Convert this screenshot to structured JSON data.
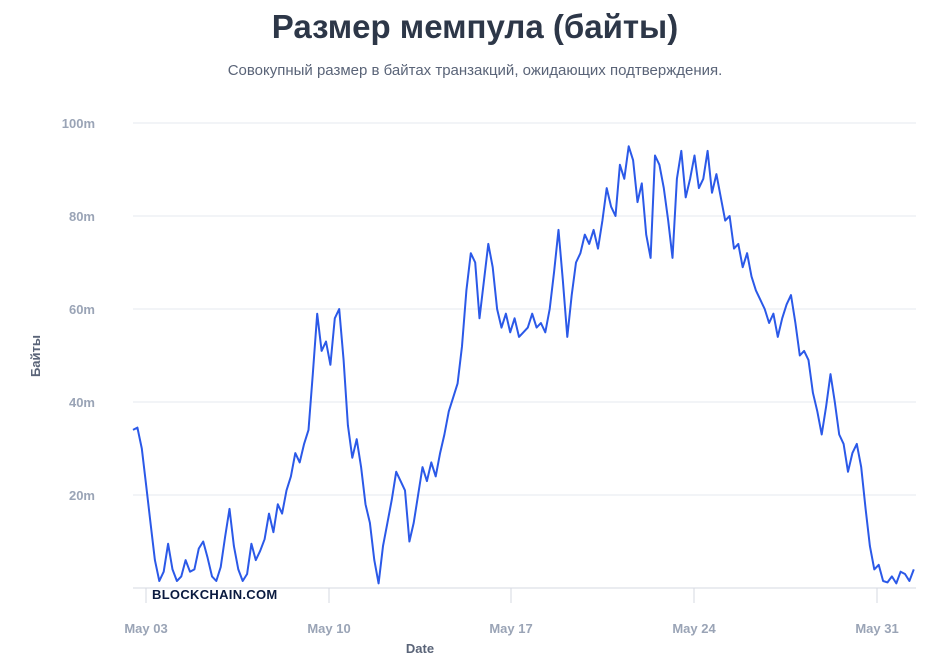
{
  "chart_data": {
    "type": "line",
    "title": "Размер мемпула (байты)",
    "subtitle": "Совокупный размер в байтах транзакций, ожидающих подтверждения.",
    "xlabel": "Date",
    "ylabel": "Байты",
    "x_tick_labels": [
      "May 03",
      "May 10",
      "May 17",
      "May 24",
      "May 31"
    ],
    "y_tick_labels": [
      "20m",
      "40m",
      "60m",
      "80m",
      "100m"
    ],
    "ylim": [
      0,
      100000000
    ],
    "xlim": [
      "2021-05-02T18:00",
      "2021-06-01T12:00"
    ],
    "grid": true,
    "line_color": "#2b59e8",
    "watermark": "BLOCKCHAIN.COM",
    "series": [
      {
        "x": [
          "2021-05-02T18:00",
          "2021-05-02T22:00",
          "2021-05-03T02:00",
          "2021-05-03T06:00",
          "2021-05-03T10:00",
          "2021-05-03T14:00",
          "2021-05-03T18:00",
          "2021-05-03T22:00",
          "2021-05-04T02:00",
          "2021-05-04T06:00",
          "2021-05-04T10:00",
          "2021-05-04T14:00",
          "2021-05-04T18:00",
          "2021-05-04T22:00",
          "2021-05-05T02:00",
          "2021-05-05T06:00",
          "2021-05-05T10:00",
          "2021-05-05T14:00",
          "2021-05-05T18:00",
          "2021-05-05T22:00",
          "2021-05-06T02:00",
          "2021-05-06T06:00",
          "2021-05-06T10:00",
          "2021-05-06T14:00",
          "2021-05-06T18:00",
          "2021-05-06T22:00",
          "2021-05-07T02:00",
          "2021-05-07T06:00",
          "2021-05-07T10:00",
          "2021-05-07T14:00",
          "2021-05-07T18:00",
          "2021-05-07T22:00",
          "2021-05-08T02:00",
          "2021-05-08T06:00",
          "2021-05-08T10:00",
          "2021-05-08T14:00",
          "2021-05-08T18:00",
          "2021-05-08T22:00",
          "2021-05-09T02:00",
          "2021-05-09T06:00",
          "2021-05-09T10:00",
          "2021-05-09T14:00",
          "2021-05-09T18:00",
          "2021-05-09T22:00",
          "2021-05-10T02:00",
          "2021-05-10T06:00",
          "2021-05-10T10:00",
          "2021-05-10T14:00",
          "2021-05-10T18:00",
          "2021-05-10T22:00",
          "2021-05-11T02:00",
          "2021-05-11T06:00",
          "2021-05-11T10:00",
          "2021-05-11T14:00",
          "2021-05-11T18:00",
          "2021-05-11T22:00",
          "2021-05-12T02:00",
          "2021-05-12T06:00",
          "2021-05-12T10:00",
          "2021-05-12T14:00",
          "2021-05-12T18:00",
          "2021-05-12T22:00",
          "2021-05-13T02:00",
          "2021-05-13T06:00",
          "2021-05-13T10:00",
          "2021-05-13T14:00",
          "2021-05-13T18:00",
          "2021-05-13T22:00",
          "2021-05-14T02:00",
          "2021-05-14T06:00",
          "2021-05-14T10:00",
          "2021-05-14T14:00",
          "2021-05-14T18:00",
          "2021-05-14T22:00",
          "2021-05-15T02:00",
          "2021-05-15T06:00",
          "2021-05-15T10:00",
          "2021-05-15T14:00",
          "2021-05-15T18:00",
          "2021-05-15T22:00",
          "2021-05-16T02:00",
          "2021-05-16T06:00",
          "2021-05-16T10:00",
          "2021-05-16T14:00",
          "2021-05-16T18:00",
          "2021-05-16T22:00",
          "2021-05-17T02:00",
          "2021-05-17T06:00",
          "2021-05-17T10:00",
          "2021-05-17T14:00",
          "2021-05-17T18:00",
          "2021-05-17T22:00",
          "2021-05-18T02:00",
          "2021-05-18T06:00",
          "2021-05-18T10:00",
          "2021-05-18T14:00",
          "2021-05-18T18:00",
          "2021-05-18T22:00",
          "2021-05-19T02:00",
          "2021-05-19T06:00",
          "2021-05-19T10:00",
          "2021-05-19T14:00",
          "2021-05-19T18:00",
          "2021-05-19T22:00",
          "2021-05-20T02:00",
          "2021-05-20T06:00",
          "2021-05-20T10:00",
          "2021-05-20T14:00",
          "2021-05-20T18:00",
          "2021-05-20T22:00",
          "2021-05-21T02:00",
          "2021-05-21T06:00",
          "2021-05-21T10:00",
          "2021-05-21T14:00",
          "2021-05-21T18:00",
          "2021-05-21T22:00",
          "2021-05-22T02:00",
          "2021-05-22T06:00",
          "2021-05-22T10:00",
          "2021-05-22T14:00",
          "2021-05-22T18:00",
          "2021-05-22T22:00",
          "2021-05-23T02:00",
          "2021-05-23T06:00",
          "2021-05-23T10:00",
          "2021-05-23T14:00",
          "2021-05-23T18:00",
          "2021-05-23T22:00",
          "2021-05-24T02:00",
          "2021-05-24T06:00",
          "2021-05-24T10:00",
          "2021-05-24T14:00",
          "2021-05-24T18:00",
          "2021-05-24T22:00",
          "2021-05-25T02:00",
          "2021-05-25T06:00",
          "2021-05-25T10:00",
          "2021-05-25T14:00",
          "2021-05-25T18:00",
          "2021-05-25T22:00",
          "2021-05-26T02:00",
          "2021-05-26T06:00",
          "2021-05-26T10:00",
          "2021-05-26T14:00",
          "2021-05-26T18:00",
          "2021-05-26T22:00",
          "2021-05-27T02:00",
          "2021-05-27T06:00",
          "2021-05-27T10:00",
          "2021-05-27T14:00",
          "2021-05-27T18:00",
          "2021-05-27T22:00",
          "2021-05-28T02:00",
          "2021-05-28T06:00",
          "2021-05-28T10:00",
          "2021-05-28T14:00",
          "2021-05-28T18:00",
          "2021-05-28T22:00",
          "2021-05-29T02:00",
          "2021-05-29T06:00",
          "2021-05-29T10:00",
          "2021-05-29T14:00",
          "2021-05-29T18:00",
          "2021-05-29T22:00",
          "2021-05-30T02:00",
          "2021-05-30T06:00",
          "2021-05-30T10:00",
          "2021-05-30T14:00",
          "2021-05-30T18:00",
          "2021-05-30T22:00",
          "2021-05-31T02:00",
          "2021-05-31T06:00",
          "2021-05-31T10:00",
          "2021-05-31T14:00",
          "2021-05-31T18:00",
          "2021-05-31T22:00",
          "2021-06-01T02:00",
          "2021-06-01T06:00",
          "2021-06-01T10:00"
        ],
        "y": [
          34000000,
          34500000,
          30000000,
          22000000,
          14000000,
          6000000,
          1500000,
          3500000,
          9500000,
          4000000,
          1500000,
          2500000,
          6000000,
          3500000,
          4000000,
          8500000,
          10000000,
          6500000,
          2500000,
          1500000,
          4500000,
          11000000,
          17000000,
          9000000,
          4000000,
          1500000,
          3000000,
          9500000,
          6000000,
          8000000,
          10500000,
          16000000,
          12000000,
          18000000,
          16000000,
          21000000,
          24000000,
          29000000,
          27000000,
          31000000,
          34000000,
          46000000,
          59000000,
          51000000,
          53000000,
          48000000,
          58000000,
          60000000,
          49000000,
          35000000,
          28000000,
          32000000,
          26000000,
          18000000,
          14000000,
          6000000,
          1000000,
          9000000,
          14000000,
          19000000,
          25000000,
          23000000,
          21000000,
          10000000,
          14000000,
          20000000,
          26000000,
          23000000,
          27000000,
          24000000,
          29000000,
          33000000,
          38000000,
          41000000,
          44000000,
          52000000,
          64000000,
          72000000,
          70000000,
          58000000,
          66000000,
          74000000,
          69000000,
          60000000,
          56000000,
          59000000,
          55000000,
          58000000,
          54000000,
          55000000,
          56000000,
          59000000,
          56000000,
          57000000,
          55000000,
          60000000,
          68000000,
          77000000,
          66000000,
          54000000,
          63000000,
          70000000,
          72000000,
          76000000,
          74000000,
          77000000,
          73000000,
          79000000,
          86000000,
          82000000,
          80000000,
          91000000,
          88000000,
          95000000,
          92000000,
          83000000,
          87000000,
          76000000,
          71000000,
          93000000,
          91000000,
          86000000,
          79000000,
          71000000,
          88000000,
          94000000,
          84000000,
          88000000,
          93000000,
          86000000,
          88000000,
          94000000,
          85000000,
          89000000,
          84000000,
          79000000,
          80000000,
          73000000,
          74000000,
          69000000,
          72000000,
          67000000,
          64000000,
          62000000,
          60000000,
          57000000,
          59000000,
          54000000,
          58000000,
          61000000,
          63000000,
          57000000,
          50000000,
          51000000,
          49000000,
          42000000,
          38000000,
          33000000,
          39000000,
          46000000,
          40000000,
          33000000,
          31000000,
          25000000,
          29000000,
          31000000,
          26000000,
          17000000,
          9000000,
          4000000,
          5000000,
          1500000,
          1200000,
          2500000,
          1000000,
          3500000,
          3000000,
          1500000,
          4000000
        ]
      }
    ]
  }
}
